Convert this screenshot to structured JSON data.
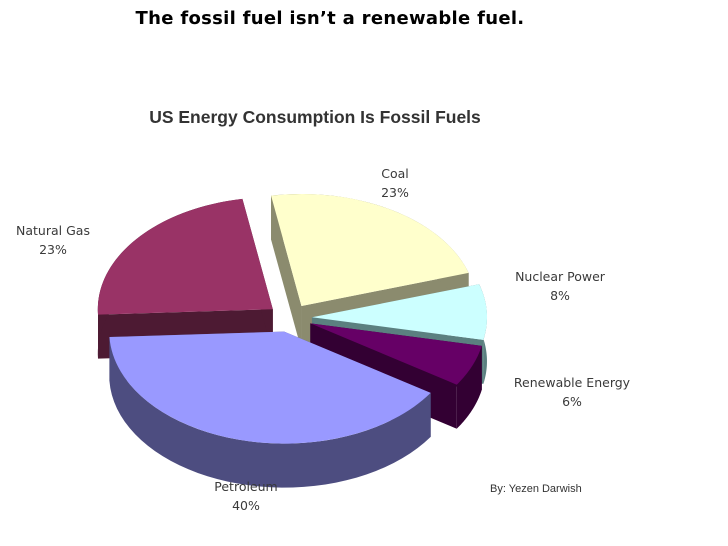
{
  "slide": {
    "heading": "The fossil fuel isn’t a renewable fuel.",
    "credit": "By: Yezen Darwish"
  },
  "chart_data": {
    "type": "pie",
    "title": "US Energy Consumption Is Fossil Fuels",
    "exploded": true,
    "three_d": true,
    "slices": [
      {
        "label": "Coal",
        "value": 23,
        "pct_label": "23%",
        "color": "#ffffcc",
        "side_color": "#8b8b6e"
      },
      {
        "label": "Nuclear Power",
        "value": 8,
        "pct_label": "8%",
        "color": "#ccffff",
        "side_color": "#5b8080"
      },
      {
        "label": "Renewable Energy",
        "value": 6,
        "pct_label": "6%",
        "color": "#660066",
        "side_color": "#330033"
      },
      {
        "label": "Petroleum",
        "value": 40,
        "pct_label": "40%",
        "color": "#9999ff",
        "side_color": "#4d4d80"
      },
      {
        "label": "Natural Gas",
        "value": 23,
        "pct_label": "23%",
        "color": "#993366",
        "side_color": "#4d1a33"
      }
    ]
  }
}
